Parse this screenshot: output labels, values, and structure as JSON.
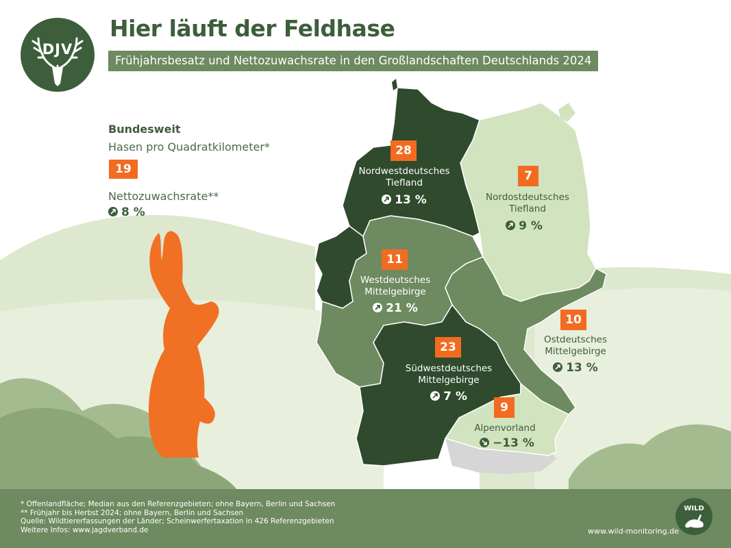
{
  "logo": {
    "text": "DJV"
  },
  "title": "Hier läuft der Feldhase",
  "subtitle": "Frühjahrsbesatz und Nettozuwachsrate in den Großlandschaften Deutschlands 2024",
  "national": {
    "heading": "Bundesweit",
    "density_label": "Hasen pro Quadratkilometer*",
    "density_value": "19",
    "growth_label": "Nettozuwachsrate**",
    "growth_value": "8 %",
    "growth_direction": "up"
  },
  "regions": [
    {
      "id": "nordwest",
      "name_line1": "Nordwestdeutsches",
      "name_line2": "Tiefland",
      "density": "28",
      "growth": "13 %",
      "direction": "up",
      "color": "#2f4a2d"
    },
    {
      "id": "nordost",
      "name_line1": "Nordostdeutsches",
      "name_line2": "Tiefland",
      "density": "7",
      "growth": "9 %",
      "direction": "up",
      "color": "#d2e3bf"
    },
    {
      "id": "west",
      "name_line1": "Westdeutsches",
      "name_line2": "Mittelgebirge",
      "density": "11",
      "growth": "21 %",
      "direction": "up",
      "color": "#6e8a60"
    },
    {
      "id": "ost",
      "name_line1": "Ostdeutsches",
      "name_line2": "Mittelgebirge",
      "density": "10",
      "growth": "13 %",
      "direction": "up",
      "color": "#6e8a60"
    },
    {
      "id": "suedwest",
      "name_line1": "Südwestdeutsches",
      "name_line2": "Mittelgebirge",
      "density": "23",
      "growth": "7 %",
      "direction": "up",
      "color": "#2f4a2d"
    },
    {
      "id": "alpen",
      "name_line1": "Alpenvorland",
      "name_line2": "",
      "density": "9",
      "growth": "−13 %",
      "direction": "down",
      "color": "#d2e3bf"
    }
  ],
  "colors": {
    "orange": "#f26b21",
    "dark_green": "#2f4a2d",
    "mid_green": "#6e8a60",
    "light_green": "#d2e3bf",
    "grey": "#d6d6d6"
  },
  "footer": {
    "note1": "* Offenlandfläche; Median aus den Referenzgebieten; ohne Bayern, Berlin und Sachsen",
    "note2": "** Frühjahr bis Herbst 2024; ohne Bayern, Berlin und Sachsen",
    "source": "Quelle: Wildtiererfassungen der Länder; Scheinwerfertaxation in 426 Referenzgebieten",
    "more": "Weitere Infos: www.jagdverband.de",
    "url": "www.wild-monitoring.de",
    "wild_logo_text": "WILD"
  }
}
